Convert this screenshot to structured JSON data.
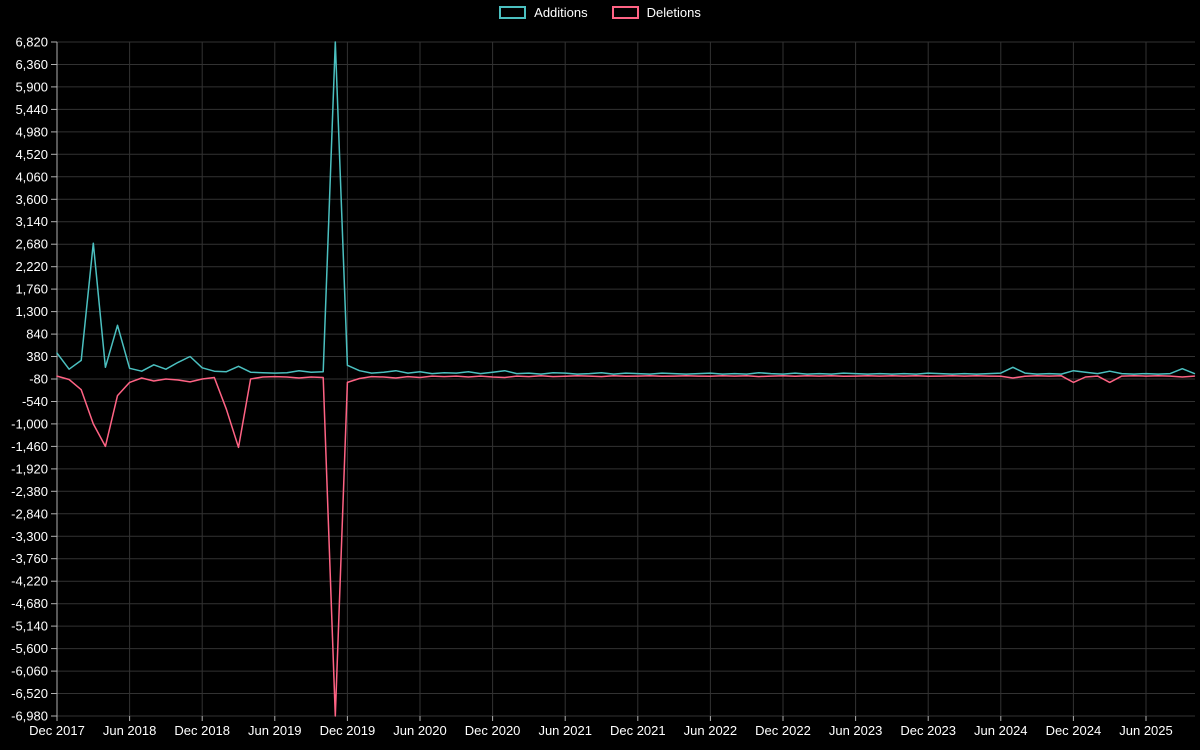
{
  "legend": {
    "items": [
      {
        "label": "Additions",
        "color": "#4bc0c0"
      },
      {
        "label": "Deletions",
        "color": "#ff6384"
      }
    ]
  },
  "colors": {
    "background": "#000000",
    "grid": "#323232",
    "axis": "#b0b0b0",
    "text": "#ffffff",
    "additions": "#4bc0c0",
    "deletions": "#ff6384"
  },
  "chart_data": {
    "type": "line",
    "title": "",
    "xlabel": "",
    "ylabel": "",
    "legend_position": "top-center",
    "grid": true,
    "x_unit": "month",
    "x_start": "Dec 2017",
    "months_per_x_tick": 6,
    "x_tick_labels": [
      "Dec 2017",
      "Jun 2018",
      "Dec 2018",
      "Jun 2019",
      "Dec 2019",
      "Jun 2020",
      "Dec 2020",
      "Jun 2021",
      "Dec 2021",
      "Jun 2022",
      "Dec 2022",
      "Jun 2023",
      "Dec 2023",
      "Jun 2024",
      "Dec 2024",
      "Jun 2025"
    ],
    "ylim": [
      -6980,
      6820
    ],
    "y_tick_values": [
      6820,
      6360,
      5900,
      5440,
      4980,
      4520,
      4060,
      3600,
      3140,
      2680,
      2220,
      1760,
      1300,
      840,
      380,
      -80,
      -540,
      -1000,
      -1460,
      -1920,
      -2380,
      -2840,
      -3300,
      -3760,
      -4220,
      -4680,
      -5140,
      -5600,
      -6060,
      -6520,
      -6980
    ],
    "y_tick_labels": [
      "6,820",
      "6,360",
      "5,900",
      "5,440",
      "4,980",
      "4,520",
      "4,060",
      "3,600",
      "3,140",
      "2,680",
      "2,220",
      "1,760",
      "1,300",
      "840",
      "380",
      "-80",
      "-540",
      "-1,000",
      "-1,460",
      "-1,920",
      "-2,380",
      "-2,840",
      "-3,300",
      "-3,760",
      "-4,220",
      "-4,680",
      "-5,140",
      "-5,600",
      "-6,060",
      "-6,520",
      "-6,980"
    ],
    "series": [
      {
        "name": "Additions",
        "color": "#4bc0c0",
        "values": [
          450,
          120,
          300,
          2700,
          160,
          1020,
          140,
          80,
          210,
          120,
          260,
          380,
          150,
          80,
          70,
          180,
          60,
          50,
          40,
          50,
          90,
          60,
          70,
          7600,
          200,
          90,
          40,
          60,
          90,
          40,
          70,
          30,
          50,
          40,
          70,
          30,
          60,
          90,
          30,
          40,
          20,
          50,
          40,
          20,
          30,
          50,
          20,
          40,
          30,
          20,
          40,
          30,
          20,
          30,
          40,
          20,
          30,
          20,
          50,
          30,
          20,
          40,
          20,
          30,
          20,
          40,
          30,
          20,
          30,
          20,
          30,
          20,
          40,
          30,
          20,
          30,
          20,
          30,
          40,
          160,
          40,
          20,
          30,
          20,
          90,
          60,
          30,
          80,
          30,
          20,
          30,
          20,
          30,
          130,
          30
        ]
      },
      {
        "name": "Deletions",
        "color": "#ff6384",
        "values": [
          -20,
          -90,
          -300,
          -1000,
          -1460,
          -420,
          -150,
          -60,
          -120,
          -80,
          -100,
          -140,
          -80,
          -50,
          -700,
          -1480,
          -80,
          -40,
          -30,
          -40,
          -60,
          -40,
          -50,
          -6980,
          -150,
          -70,
          -30,
          -40,
          -60,
          -30,
          -50,
          -20,
          -30,
          -20,
          -40,
          -20,
          -40,
          -50,
          -20,
          -30,
          -15,
          -30,
          -25,
          -15,
          -20,
          -30,
          -15,
          -25,
          -20,
          -15,
          -25,
          -20,
          -15,
          -20,
          -25,
          -15,
          -20,
          -15,
          -30,
          -20,
          -15,
          -25,
          -15,
          -20,
          -15,
          -25,
          -20,
          -15,
          -20,
          -15,
          -20,
          -15,
          -25,
          -20,
          -15,
          -20,
          -15,
          -20,
          -25,
          -60,
          -25,
          -15,
          -20,
          -15,
          -150,
          -40,
          -20,
          -150,
          -20,
          -15,
          -20,
          -15,
          -20,
          -40,
          -20
        ]
      }
    ]
  }
}
